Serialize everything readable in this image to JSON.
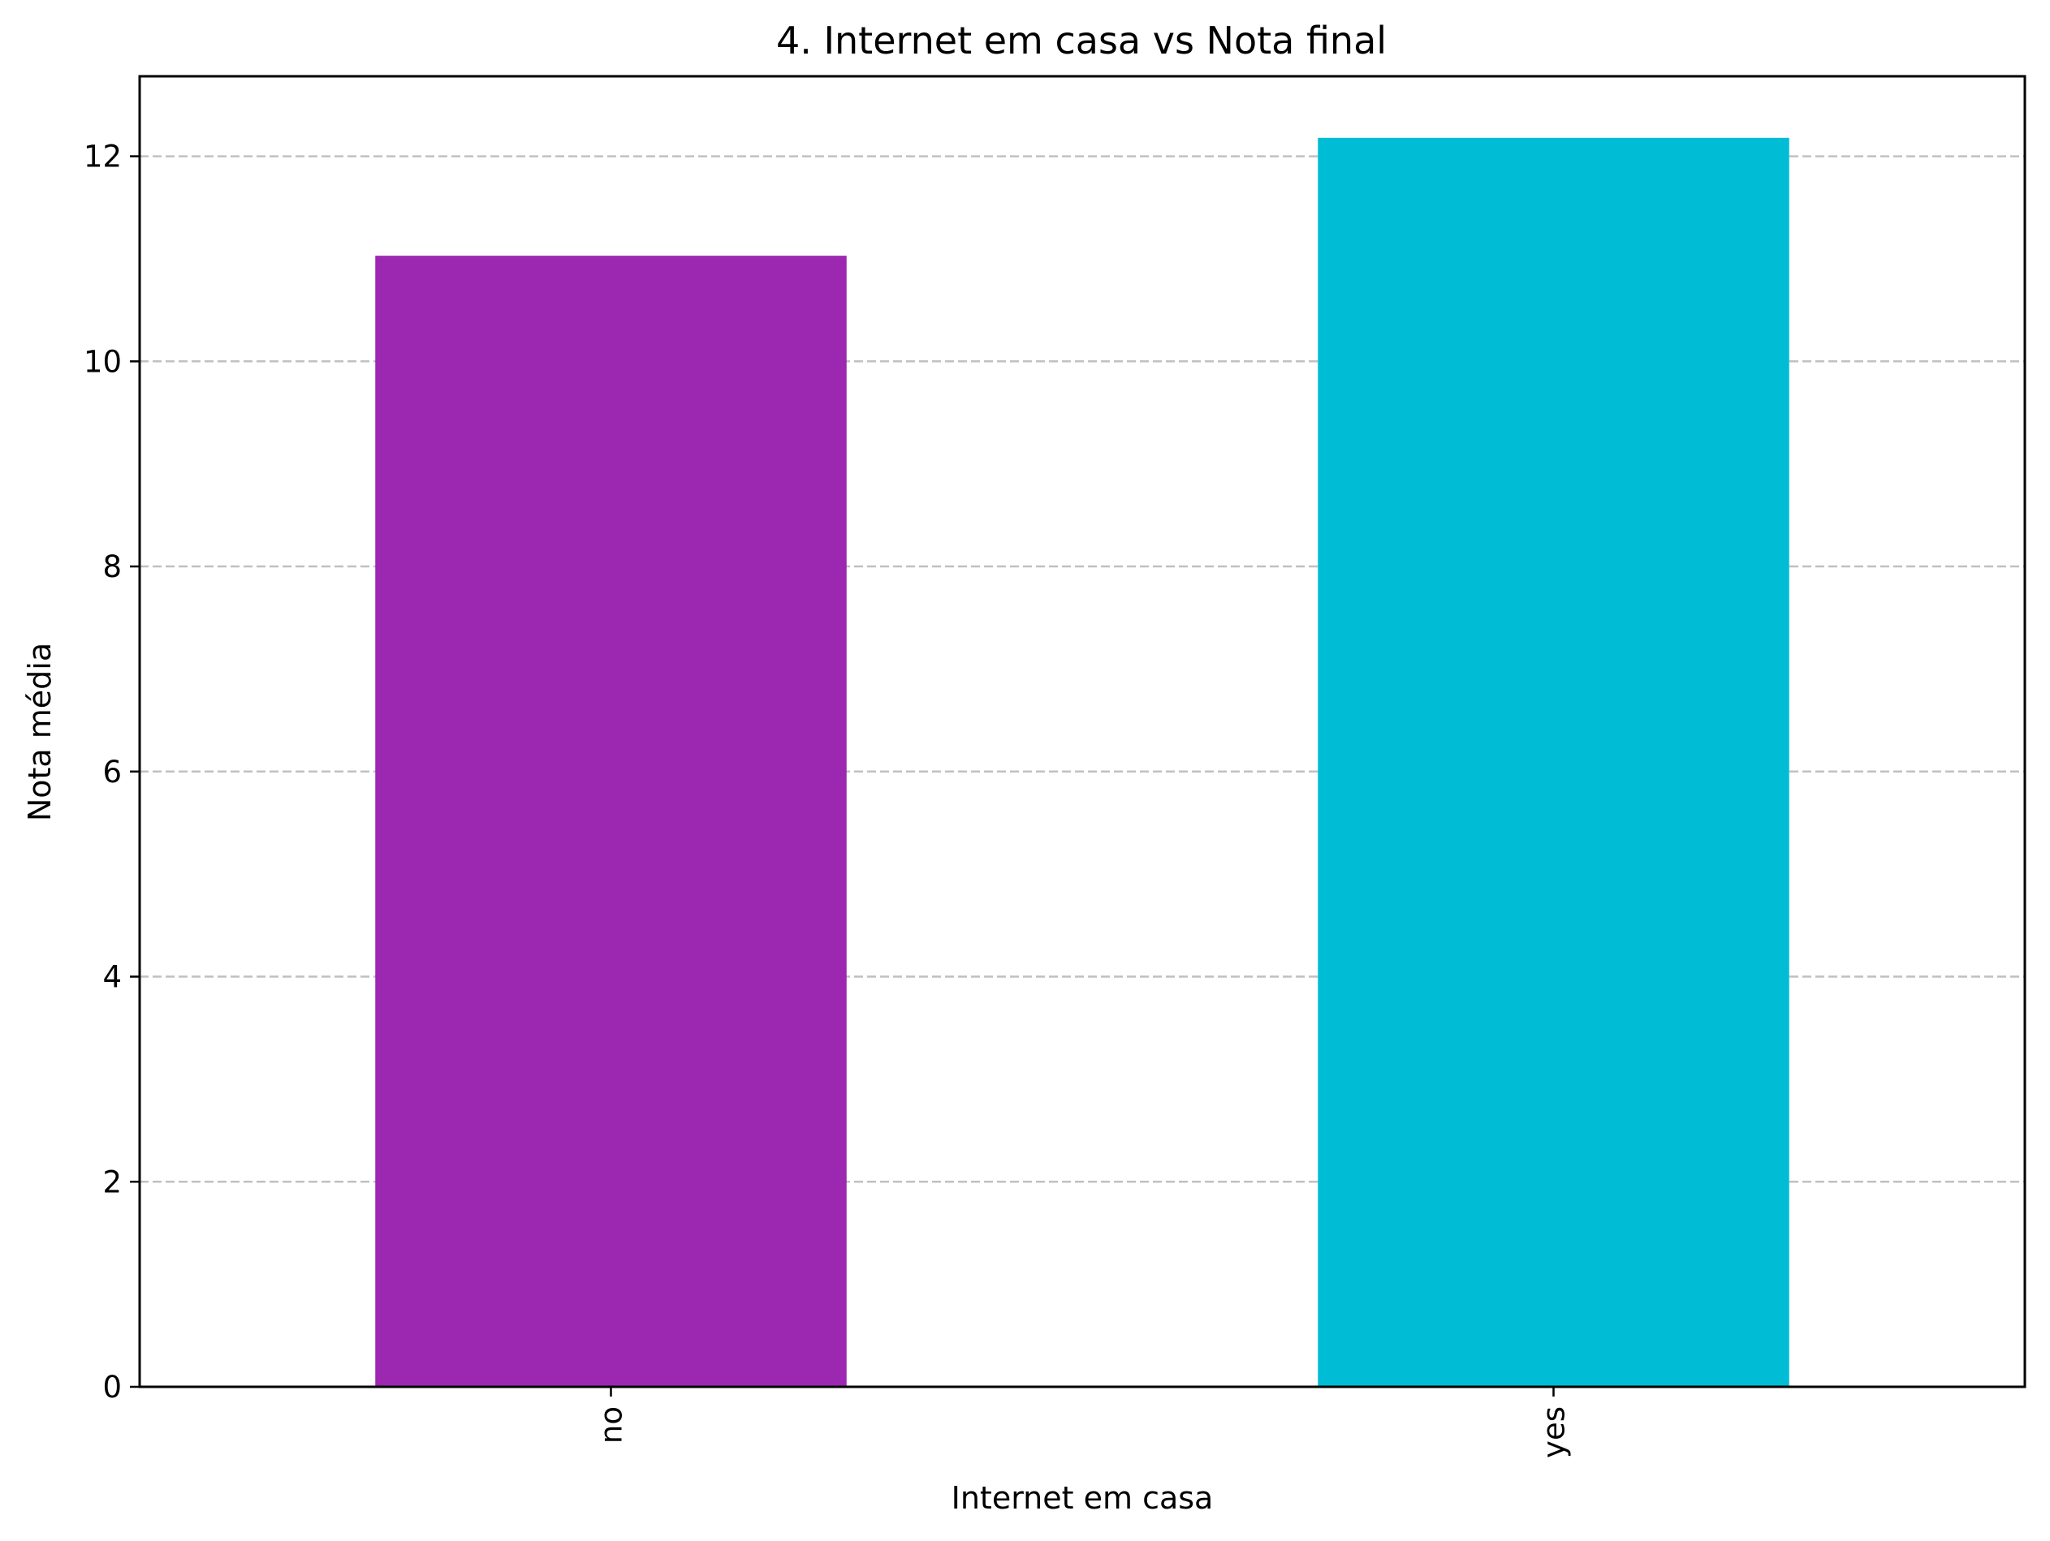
{
  "chart_data": {
    "type": "bar",
    "title": "4. Internet em casa vs Nota final",
    "xlabel": "Internet em casa",
    "ylabel": "Nota média",
    "categories": [
      "no",
      "yes"
    ],
    "values": [
      11.03,
      12.18
    ],
    "colors": [
      "#9c27b0",
      "#00bcd4"
    ],
    "ylim": [
      0,
      12.78
    ],
    "yticks": [
      0,
      2,
      4,
      6,
      8,
      10,
      12
    ],
    "grid": "y-dashed",
    "legend": "none"
  }
}
